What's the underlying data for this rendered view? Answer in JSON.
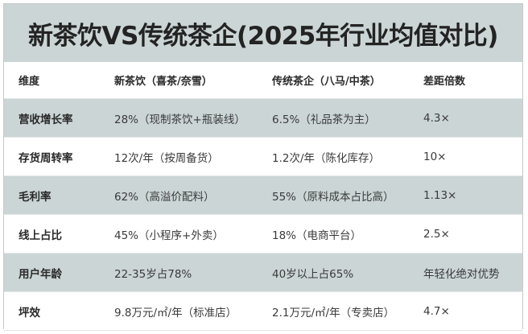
{
  "title": "新茶饮VS传统茶企(2025年行业均值对比)",
  "headers": [
    "维度",
    "新茶饮（喜茶/奈雪）",
    "传统茶企（八马/中茶）",
    "差距倍数"
  ],
  "rows": [
    [
      "营收增长率",
      "28%（现制茶饮+瓶装线）",
      "6.5%（礼品茶为主）",
      "4.3×"
    ],
    [
      "存货周转率",
      "12次/年（按周备货）",
      "1.2次/年（陈化库存）",
      "10×"
    ],
    [
      "毛利率",
      "62%（高溢价配料）",
      "55%（原料成本占比高）",
      "1.13×"
    ],
    [
      "线上占比",
      "45%（小程序+外卖）",
      "18%（电商平台）",
      "2.5×"
    ],
    [
      "用户年龄",
      "22-35岁占78%",
      "40岁以上占65%",
      "年轻化绝对优势"
    ],
    [
      "坪效",
      "9.8万元/㎡/年（标准店）",
      "2.1万元/㎡/年（专卖店）",
      "4.7×"
    ]
  ],
  "colors": {
    "band": "#cbd5d6",
    "text": "#3a3a3a"
  }
}
